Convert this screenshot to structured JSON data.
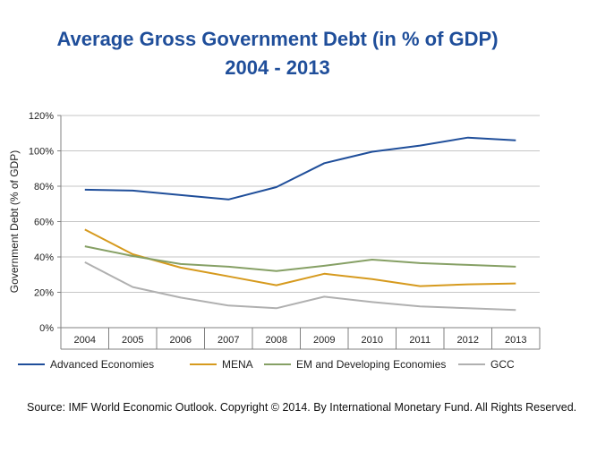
{
  "chart_data": {
    "type": "line",
    "title": "Average Gross Government Debt (in % of GDP)",
    "subtitle": "2004 - 2013",
    "ylabel": "Government Debt (% of GDP)",
    "xlabel": "",
    "ylim": [
      0,
      120
    ],
    "yticks": [
      "0%",
      "20%",
      "40%",
      "60%",
      "80%",
      "100%",
      "120%"
    ],
    "ytick_values": [
      0,
      20,
      40,
      60,
      80,
      100,
      120
    ],
    "categories": [
      "2004",
      "2005",
      "2006",
      "2007",
      "2008",
      "2009",
      "2010",
      "2011",
      "2012",
      "2013"
    ],
    "grid": true,
    "legend_position": "bottom",
    "series": [
      {
        "name": "Advanced Economies",
        "color": "#1f4e9a",
        "values": [
          78,
          77.5,
          75,
          72.5,
          79.5,
          93,
          99.5,
          103,
          107.5,
          106
        ]
      },
      {
        "name": "MENA",
        "color": "#d69a1e",
        "values": [
          55.5,
          41.5,
          34,
          29,
          24,
          30.5,
          27.5,
          23.5,
          24.5,
          25
        ]
      },
      {
        "name": "EM and Developing Economies",
        "color": "#86a065",
        "values": [
          46,
          40.5,
          36,
          34.5,
          32,
          35,
          38.5,
          36.5,
          35.5,
          34.5
        ]
      },
      {
        "name": "GCC",
        "color": "#b0b0b0",
        "values": [
          37,
          23,
          17,
          12.5,
          11,
          17.5,
          14.5,
          12,
          11,
          10
        ]
      }
    ]
  },
  "source_text": "Source: IMF World Economic Outlook. Copyright © 2014.  By International Monetary Fund. All Rights Reserved."
}
